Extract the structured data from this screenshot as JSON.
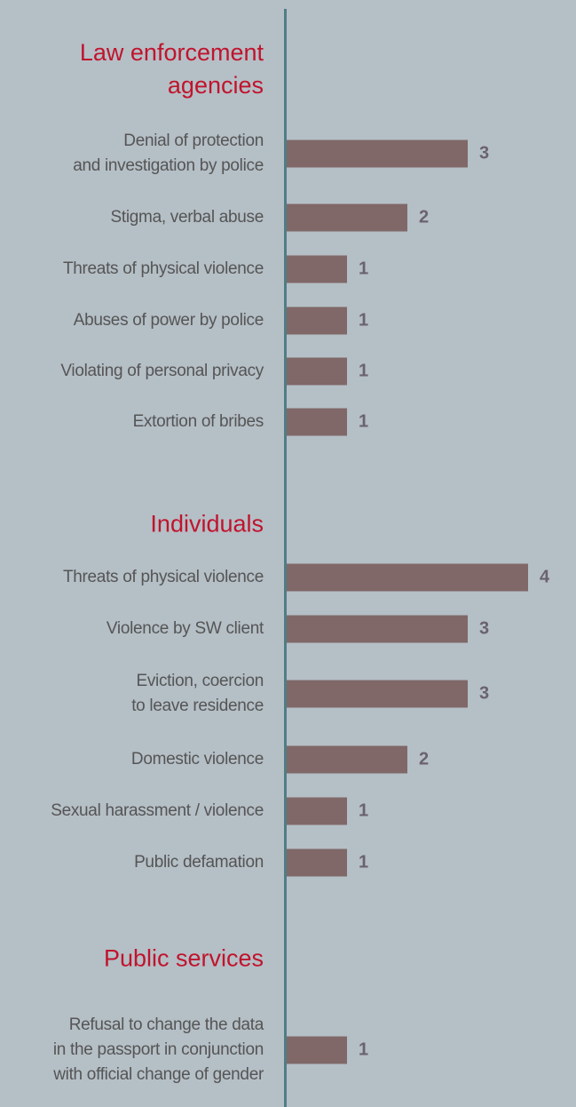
{
  "chart_data": {
    "type": "bar",
    "orientation": "horizontal",
    "color": "#806868",
    "groups": [
      {
        "name": "Law enforcement\nagencies",
        "categories": [
          "Denial of protection\nand investigation by police",
          "Stigma, verbal abuse",
          "Threats of physical violence",
          "Abuses of power by police",
          "Violating of personal privacy",
          "Extortion of bribes"
        ],
        "values": [
          3,
          2,
          1,
          1,
          1,
          1
        ]
      },
      {
        "name": "Individuals",
        "categories": [
          "Threats of physical violence",
          "Violence by SW client",
          "Eviction, coercion\nto leave residence",
          "Domestic violence",
          "Sexual harassment / violence",
          "Public defamation"
        ],
        "values": [
          4,
          3,
          3,
          2,
          1,
          1
        ]
      },
      {
        "name": "Public services",
        "categories": [
          "Refusal to change the data\nin the passport in conjunction\nwith official change of gender"
        ],
        "values": [
          1
        ]
      }
    ]
  }
}
